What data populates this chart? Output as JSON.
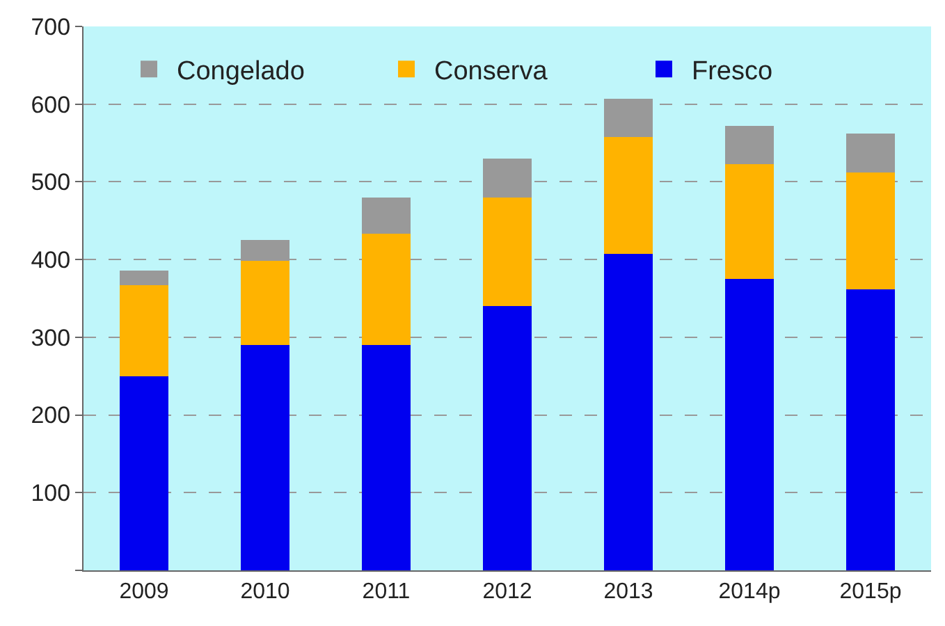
{
  "chart_data": {
    "type": "bar",
    "stacked": true,
    "categories": [
      "2009",
      "2010",
      "2011",
      "2012",
      "2013",
      "2014p",
      "2015p"
    ],
    "series": [
      {
        "name": "Fresco",
        "color": "#0000f0",
        "values": [
          250,
          290,
          290,
          340,
          407,
          375,
          362
        ]
      },
      {
        "name": "Conserva",
        "color": "#ffb300",
        "values": [
          117,
          108,
          143,
          140,
          151,
          148,
          150
        ]
      },
      {
        "name": "Congelado",
        "color": "#999999",
        "values": [
          19,
          27,
          47,
          50,
          49,
          49,
          50
        ]
      }
    ],
    "ylim": [
      0,
      700
    ],
    "yticks": [
      {
        "value": 0,
        "label": null
      },
      100,
      200,
      300,
      400,
      500,
      600,
      700
    ],
    "grid": "y",
    "legend": "top"
  }
}
